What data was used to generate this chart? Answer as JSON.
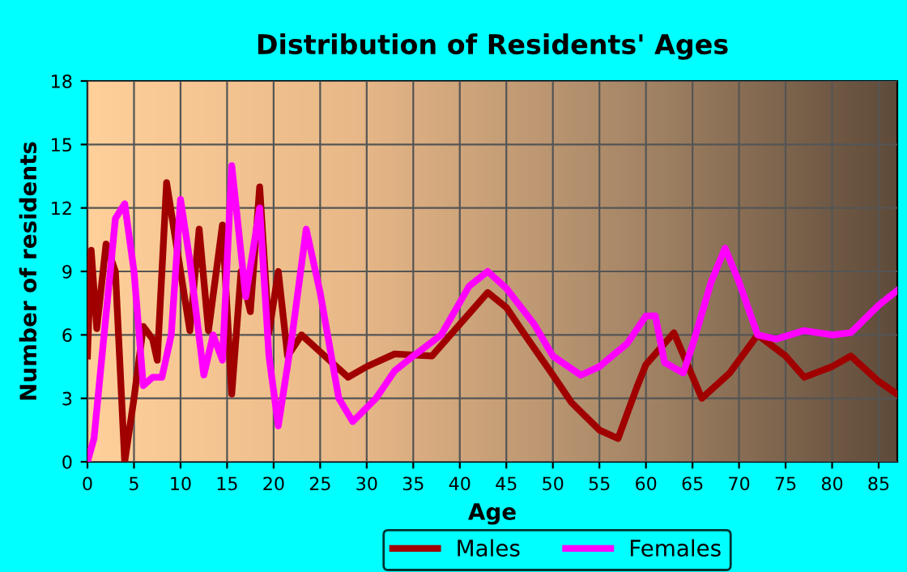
{
  "chart_data": {
    "type": "line",
    "title": "Distribution of Residents' Ages",
    "xlabel": "Age",
    "ylabel": "Number of residents",
    "xlim": [
      0,
      87
    ],
    "xticks": [
      0,
      5,
      10,
      15,
      20,
      25,
      30,
      35,
      40,
      45,
      50,
      55,
      60,
      65,
      70,
      75,
      80,
      85
    ],
    "ylim": [
      0,
      18
    ],
    "yticks": [
      0,
      3,
      6,
      9,
      12,
      15,
      18
    ],
    "grid": true,
    "legend": "bottom",
    "marker": "none",
    "line_style": "solid",
    "series": [
      {
        "name": "Males",
        "color": "#a00000",
        "x": [
          0,
          0.4,
          1,
          2,
          3,
          4,
          5,
          6,
          7,
          7.5,
          8.5,
          10,
          11,
          12,
          13,
          14.5,
          15.5,
          16.5,
          17.5,
          18.5,
          19.5,
          20.5,
          21.5,
          23,
          25,
          28,
          30,
          33,
          37,
          40,
          43,
          45,
          47,
          50,
          52,
          55,
          57,
          59,
          60,
          63,
          66,
          69,
          72,
          75,
          77,
          80,
          82,
          85,
          87
        ],
        "values": [
          5,
          10,
          6.3,
          10.3,
          9,
          0,
          3,
          6.4,
          5.8,
          4.8,
          13.2,
          9,
          6.2,
          11,
          6.2,
          11.2,
          3.2,
          9,
          7.1,
          13,
          6.1,
          9,
          5,
          6,
          5.2,
          4,
          4.5,
          5.1,
          5,
          6.5,
          8,
          7.3,
          6,
          4.1,
          2.8,
          1.5,
          1.1,
          3.5,
          4.6,
          6.1,
          3,
          4.2,
          6,
          5,
          4,
          4.5,
          5,
          3.8,
          3.2
        ]
      },
      {
        "name": "Females",
        "color": "#ff00ff",
        "x": [
          0,
          0.7,
          3,
          4,
          5,
          6,
          7,
          8,
          9,
          10,
          11,
          12.5,
          13.5,
          14.5,
          15.5,
          17,
          18.5,
          19.5,
          20.5,
          22,
          23.5,
          25,
          27,
          28.5,
          31,
          33,
          35,
          38,
          41,
          43,
          45,
          48,
          50,
          53,
          55,
          58,
          60,
          61,
          62,
          64,
          65,
          67,
          68.5,
          70,
          72,
          74,
          77,
          80,
          82,
          85,
          87
        ],
        "values": [
          0,
          1.1,
          11.5,
          12.2,
          9,
          3.6,
          4,
          4,
          6,
          12.4,
          9.5,
          4.1,
          6,
          4.8,
          14,
          7.8,
          12,
          5,
          1.7,
          6,
          11,
          8,
          3,
          1.9,
          3,
          4.3,
          5,
          6,
          8.3,
          9,
          8.2,
          6.5,
          5,
          4.1,
          4.5,
          5.6,
          6.9,
          6.9,
          4.7,
          4.2,
          5.5,
          8.5,
          10.1,
          8.5,
          6,
          5.8,
          6.2,
          6,
          6.1,
          7.4,
          8.1
        ]
      }
    ]
  }
}
